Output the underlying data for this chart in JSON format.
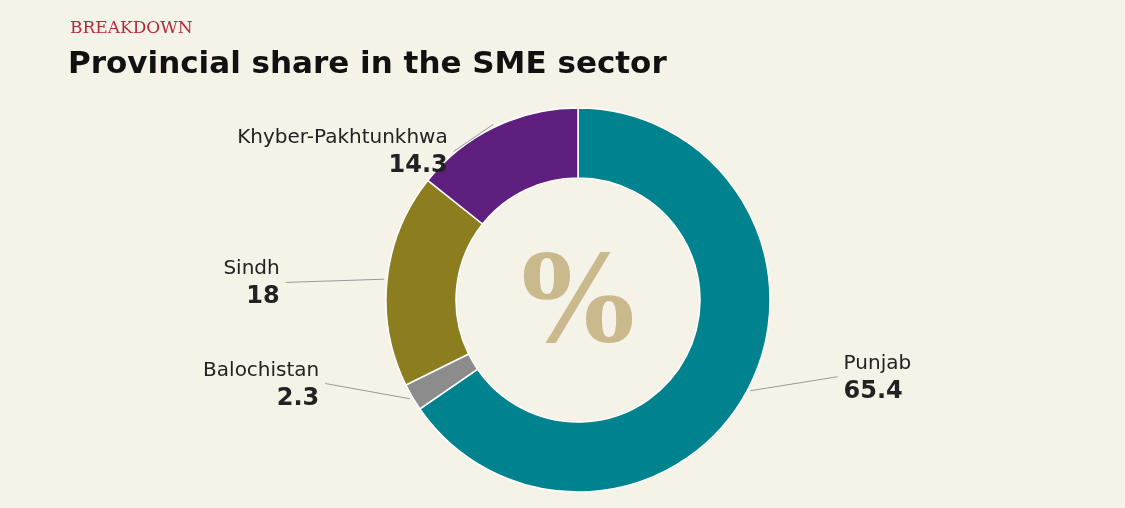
{
  "chart_data": {
    "type": "donut",
    "subtitle": "BREAKDOWN",
    "title": "Provincial share in the SME sector",
    "categories": [
      "Punjab",
      "Balochistan",
      "Sindh",
      "Khyber-Pakhtunkhwa"
    ],
    "values": [
      65.4,
      2.3,
      18,
      14.3
    ],
    "colors": [
      "#00838f",
      "#8c8c8c",
      "#8c7d1e",
      "#5e1f7e"
    ],
    "data_labels": true,
    "annotations": [
      "%"
    ]
  }
}
